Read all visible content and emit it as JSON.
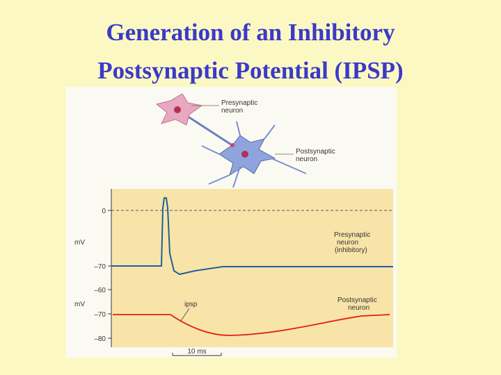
{
  "header": {
    "title_lines": [
      "Generation of an Inhibitory",
      "Postsynaptic Potential (IPSP)"
    ]
  },
  "figure": {
    "diagram": {
      "presynaptic_label": [
        "Presynaptic",
        "neuron"
      ],
      "postsynaptic_label": [
        "Postsynaptic",
        "neuron"
      ]
    },
    "top_panel": {
      "unit": "mV",
      "ticks": [
        "0",
        "–70"
      ],
      "trace_label": [
        "Presynaptic",
        "neuron",
        "(inhibitory)"
      ]
    },
    "bottom_panel": {
      "unit": "mV",
      "ticks": [
        "–60",
        "–70",
        "–80"
      ],
      "trace_label": [
        "Postsynaptic",
        "neuron"
      ],
      "annotation": "ipsp"
    },
    "scale_bar": "10 ms"
  }
}
